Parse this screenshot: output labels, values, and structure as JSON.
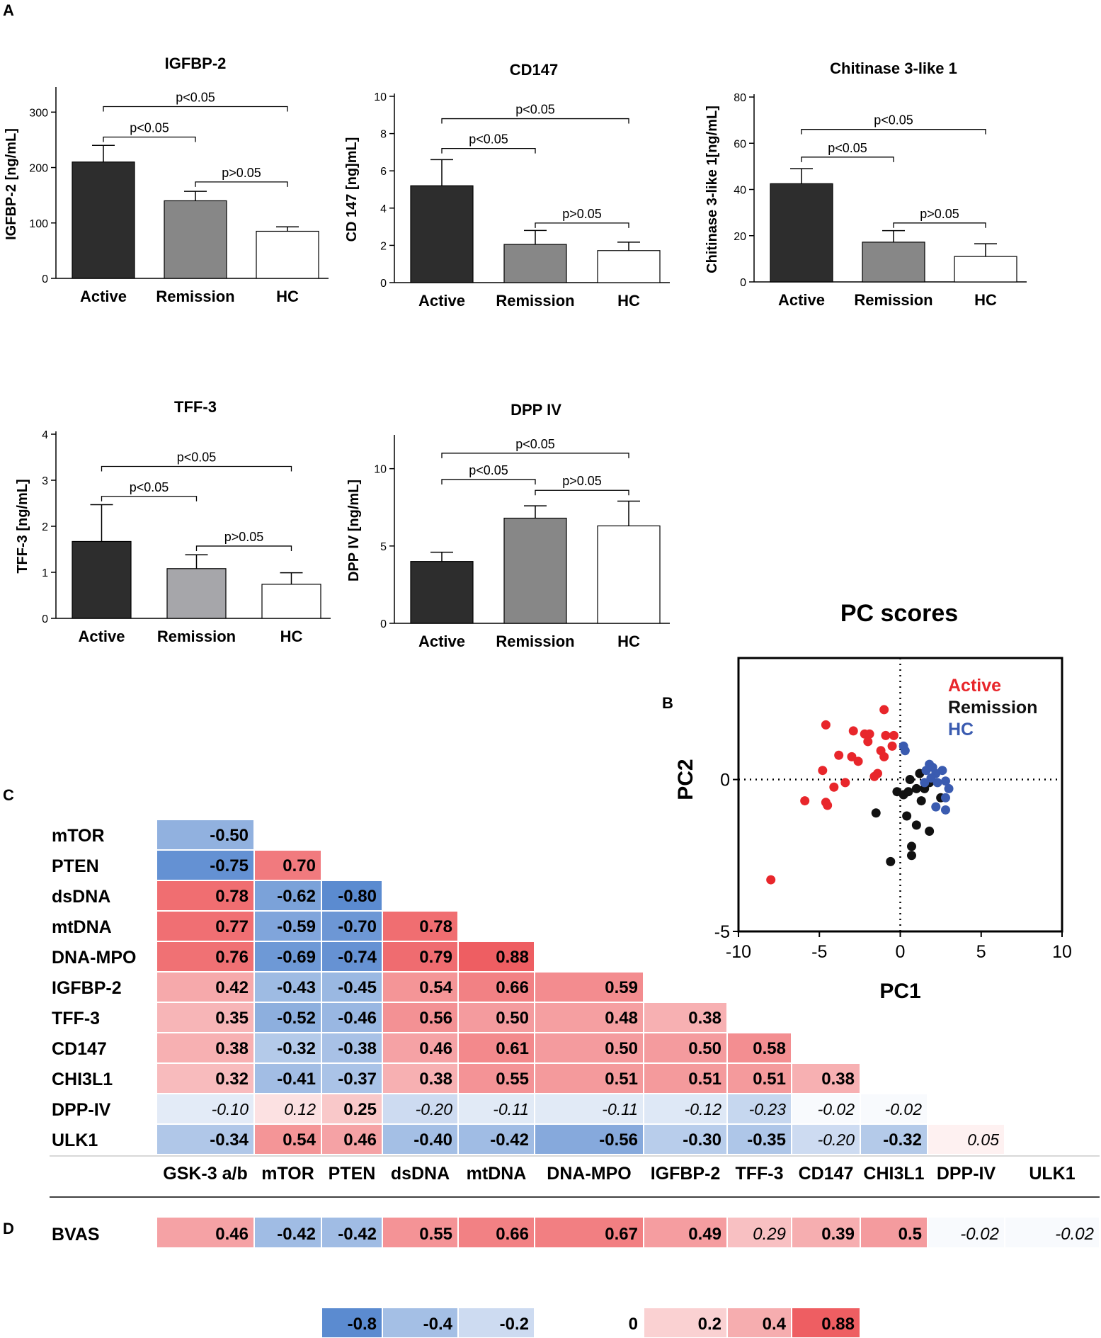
{
  "panel_labels": {
    "a": "A",
    "b": "B",
    "c": "C",
    "d": "D"
  },
  "colors": {
    "active_bar": "#2d2d2d",
    "remission_bar": "#878787",
    "remission_bar_tff3": "#a6a6aa",
    "hc_bar": "#ffffff",
    "active_dot": "#e8262b",
    "remission_dot": "#111111",
    "hc_dot": "#3a5bb0",
    "neg_strong": "#5b8bd0",
    "pos_strong": "#ee5e62"
  },
  "chart_data": [
    {
      "id": "igfbp2",
      "type": "bar",
      "title": "IGFBP-2",
      "categories": [
        "Active",
        "Remission",
        "HC"
      ],
      "values": [
        210,
        140,
        85
      ],
      "errors": [
        30,
        17,
        8
      ],
      "ylabel": "IGFBP-2 [ng/mL]",
      "ylim": [
        0,
        340
      ],
      "yticks": [
        0,
        100,
        200,
        300
      ],
      "brackets": [
        {
          "from": 0,
          "to": 2,
          "level": 310,
          "label": "p<0.05"
        },
        {
          "from": 0,
          "to": 1,
          "level": 255,
          "label": "p<0.05"
        },
        {
          "from": 1,
          "to": 2,
          "level": 174,
          "label": "p>0.05"
        }
      ]
    },
    {
      "id": "cd147",
      "type": "bar",
      "title": "CD147",
      "categories": [
        "Active",
        "Remission",
        "HC"
      ],
      "values": [
        5.2,
        2.05,
        1.72
      ],
      "errors": [
        1.4,
        0.75,
        0.45
      ],
      "ylabel": "CD 147 [ng]mL]",
      "ylim": [
        0,
        10
      ],
      "yticks": [
        0,
        2,
        4,
        6,
        8,
        10
      ],
      "brackets": [
        {
          "from": 0,
          "to": 2,
          "level": 8.8,
          "label": "p<0.05"
        },
        {
          "from": 0,
          "to": 1,
          "level": 7.2,
          "label": "p<0.05"
        },
        {
          "from": 1,
          "to": 2,
          "level": 3.2,
          "label": "p>0.05"
        }
      ]
    },
    {
      "id": "chi3l1",
      "type": "bar",
      "title": "Chitinase 3-like 1",
      "categories": [
        "Active",
        "Remission",
        "HC"
      ],
      "values": [
        42.5,
        17.2,
        11
      ],
      "errors": [
        6.5,
        5,
        5.5
      ],
      "ylabel": "Chitinase 3-like 1[ng/mL]",
      "ylim": [
        0,
        80
      ],
      "yticks": [
        0,
        20,
        40,
        60,
        80
      ],
      "brackets": [
        {
          "from": 0,
          "to": 2,
          "level": 66,
          "label": "p<0.05"
        },
        {
          "from": 0,
          "to": 1,
          "level": 54,
          "label": "p<0.05"
        },
        {
          "from": 1,
          "to": 2,
          "level": 25.5,
          "label": "p>0.05"
        }
      ]
    },
    {
      "id": "tff3",
      "type": "bar",
      "title": "TFF-3",
      "categories": [
        "Active",
        "Remission",
        "HC"
      ],
      "values": [
        1.67,
        1.08,
        0.74
      ],
      "errors": [
        0.8,
        0.3,
        0.25
      ],
      "ylabel": "TFF-3 [ng/mL]",
      "ylim": [
        0,
        4
      ],
      "yticks": [
        0,
        1,
        2,
        3,
        4
      ],
      "brackets": [
        {
          "from": 0,
          "to": 2,
          "level": 3.3,
          "label": "p<0.05"
        },
        {
          "from": 0,
          "to": 1,
          "level": 2.65,
          "label": "p<0.05"
        },
        {
          "from": 1,
          "to": 2,
          "level": 1.57,
          "label": "p>0.05"
        }
      ]
    },
    {
      "id": "dpp4",
      "type": "bar",
      "title": "DPP IV",
      "categories": [
        "Active",
        "Remission",
        "HC"
      ],
      "values": [
        4,
        6.8,
        6.3
      ],
      "errors": [
        0.6,
        0.8,
        1.6
      ],
      "ylabel": "DPP IV [ng/mL]",
      "ylim": [
        0,
        12
      ],
      "yticks": [
        0,
        5,
        10
      ],
      "brackets": [
        {
          "from": 0,
          "to": 2,
          "level": 11,
          "label": "p<0.05"
        },
        {
          "from": 0,
          "to": 1,
          "level": 9.3,
          "label": "p<0.05"
        },
        {
          "from": 1,
          "to": 2,
          "level": 8.6,
          "label": "p>0.05"
        }
      ]
    },
    {
      "id": "pc_scores",
      "type": "scatter",
      "title": "PC scores",
      "xlabel": "PC1",
      "ylabel": "PC2",
      "xlim": [
        -10,
        10
      ],
      "ylim": [
        -5,
        4
      ],
      "xticks": [
        -10,
        -5,
        0,
        5,
        10
      ],
      "yticks": [
        -5,
        0
      ],
      "legend": [
        "Active",
        "Remission",
        "HC"
      ],
      "series": [
        {
          "name": "Active",
          "points": [
            [
              -1,
              2.3
            ],
            [
              -4.6,
              1.8
            ],
            [
              -2.9,
              1.6
            ],
            [
              -2.2,
              1.5
            ],
            [
              -1.9,
              1.5
            ],
            [
              -0.9,
              1.45
            ],
            [
              -0.4,
              1.45
            ],
            [
              -2,
              1.25
            ],
            [
              -0.5,
              1.1
            ],
            [
              -1.2,
              0.95
            ],
            [
              -3,
              0.75
            ],
            [
              -3.8,
              0.8
            ],
            [
              -2.6,
              0.6
            ],
            [
              -1,
              0.75
            ],
            [
              -4.8,
              0.3
            ],
            [
              -1.4,
              0.2
            ],
            [
              -1.6,
              0.1
            ],
            [
              -3.4,
              -0.1
            ],
            [
              -4.1,
              -0.25
            ],
            [
              -5.9,
              -0.7
            ],
            [
              -4.6,
              -0.75
            ],
            [
              -4.5,
              -0.85
            ],
            [
              -8,
              -3.3
            ]
          ]
        },
        {
          "name": "Remission",
          "points": [
            [
              1.2,
              0.2
            ],
            [
              0.6,
              0
            ],
            [
              1.8,
              -0.1
            ],
            [
              1,
              -0.3
            ],
            [
              -0.2,
              -0.4
            ],
            [
              0.2,
              -0.5
            ],
            [
              0.5,
              -0.4
            ],
            [
              1.5,
              -0.3
            ],
            [
              1.3,
              -0.7
            ],
            [
              2.5,
              -0.6
            ],
            [
              -1.5,
              -1.1
            ],
            [
              0.4,
              -1.2
            ],
            [
              1,
              -1.5
            ],
            [
              1.8,
              -1.7
            ],
            [
              0.7,
              -2.2
            ],
            [
              0.7,
              -2.5
            ],
            [
              -0.6,
              -2.7
            ]
          ]
        },
        {
          "name": "HC",
          "points": [
            [
              0.2,
              1.1
            ],
            [
              0.3,
              0.95
            ],
            [
              1.8,
              0.5
            ],
            [
              2,
              0.4
            ],
            [
              1.6,
              0.3
            ],
            [
              2.2,
              0.2
            ],
            [
              2.6,
              0.3
            ],
            [
              1.9,
              0.05
            ],
            [
              2.3,
              -0.1
            ],
            [
              2.8,
              -0.05
            ],
            [
              3,
              -0.3
            ],
            [
              1.5,
              -0.1
            ],
            [
              2.8,
              -0.6
            ],
            [
              2.2,
              -0.9
            ],
            [
              2.8,
              -1
            ]
          ]
        }
      ]
    },
    {
      "id": "correlation",
      "type": "heatmap",
      "rows": [
        "mTOR",
        "PTEN",
        "dsDNA",
        "mtDNA",
        "DNA-MPO",
        "IGFBP-2",
        "TFF-3",
        "CD147",
        "CHI3L1",
        "DPP-IV",
        "ULK1"
      ],
      "columns": [
        "GSK-3 a/b",
        "mTOR",
        "PTEN",
        "dsDNA",
        "mtDNA",
        "DNA-MPO",
        "IGFBP-2",
        "TFF-3",
        "CD147",
        "CHI3L1",
        "DPP-IV",
        "ULK1"
      ],
      "values": [
        [
          -0.5
        ],
        [
          -0.75,
          0.7
        ],
        [
          0.78,
          -0.62,
          -0.8
        ],
        [
          0.77,
          -0.59,
          -0.7,
          0.78
        ],
        [
          0.76,
          -0.69,
          -0.74,
          0.79,
          0.88
        ],
        [
          0.42,
          -0.43,
          -0.45,
          0.54,
          0.66,
          0.59
        ],
        [
          0.35,
          -0.52,
          -0.46,
          0.56,
          0.5,
          0.48,
          0.38
        ],
        [
          0.38,
          -0.32,
          -0.38,
          0.46,
          0.61,
          0.5,
          0.5,
          0.58
        ],
        [
          0.32,
          -0.41,
          -0.37,
          0.38,
          0.55,
          0.51,
          0.51,
          0.51,
          0.38
        ],
        [
          -0.1,
          0.12,
          0.25,
          -0.2,
          -0.11,
          -0.11,
          -0.12,
          -0.23,
          -0.02,
          -0.02
        ],
        [
          -0.34,
          0.54,
          0.46,
          -0.4,
          -0.42,
          -0.56,
          -0.3,
          -0.35,
          -0.2,
          -0.32,
          0.05
        ]
      ],
      "labels": [
        [
          "-0.50"
        ],
        [
          "-0.75",
          "0.70"
        ],
        [
          "0.78",
          "-0.62",
          "-0.80"
        ],
        [
          "0.77",
          "-0.59",
          "-0.70",
          "0.78"
        ],
        [
          "0.76",
          "-0.69",
          "-0.74",
          "0.79",
          "0.88"
        ],
        [
          "0.42",
          "-0.43",
          "-0.45",
          "0.54",
          "0.66",
          "0.59"
        ],
        [
          "0.35",
          "-0.52",
          "-0.46",
          "0.56",
          "0.50",
          "0.48",
          "0.38"
        ],
        [
          "0.38",
          "-0.32",
          "-0.38",
          "0.46",
          "0.61",
          "0.50",
          "0.50",
          "0.58"
        ],
        [
          "0.32",
          "-0.41",
          "-0.37",
          "0.38",
          "0.55",
          "0.51",
          "0.51",
          "0.51",
          "0.38"
        ],
        [
          "-0.10",
          "0.12",
          "0.25",
          "-0.20",
          "-0.11",
          "-0.11",
          "-0.12",
          "-0.23",
          "-0.02",
          "-0.02"
        ],
        [
          "-0.34",
          "0.54",
          "0.46",
          "-0.40",
          "-0.42",
          "-0.56",
          "-0.30",
          "-0.35",
          "-0.20",
          "-0.32",
          "0.05"
        ]
      ],
      "significant": [
        [
          true
        ],
        [
          true,
          true
        ],
        [
          true,
          true,
          true
        ],
        [
          true,
          true,
          true,
          true
        ],
        [
          true,
          true,
          true,
          true,
          true
        ],
        [
          true,
          true,
          true,
          true,
          true,
          true
        ],
        [
          true,
          true,
          true,
          true,
          true,
          true,
          true
        ],
        [
          true,
          true,
          true,
          true,
          true,
          true,
          true,
          true
        ],
        [
          true,
          true,
          true,
          true,
          true,
          true,
          true,
          true,
          true
        ],
        [
          false,
          false,
          true,
          false,
          false,
          false,
          false,
          false,
          false,
          false
        ],
        [
          true,
          true,
          true,
          true,
          true,
          true,
          true,
          true,
          false,
          true,
          false
        ]
      ]
    },
    {
      "id": "bvas",
      "type": "heatmap",
      "row": "BVAS",
      "values": [
        0.46,
        -0.42,
        -0.42,
        0.55,
        0.66,
        0.67,
        0.49,
        0.29,
        0.39,
        0.5,
        -0.02,
        -0.02
      ],
      "labels": [
        "0.46",
        "-0.42",
        "-0.42",
        "0.55",
        "0.66",
        "0.67",
        "0.49",
        "0.29",
        "0.39",
        "0.5",
        "-0.02",
        "-0.02"
      ],
      "significant": [
        true,
        true,
        true,
        true,
        true,
        true,
        true,
        false,
        true,
        true,
        false,
        false
      ]
    },
    {
      "id": "colorscale",
      "type": "legend",
      "values": [
        -0.8,
        -0.4,
        -0.2,
        0,
        0.2,
        0.4,
        0.88
      ],
      "labels": [
        "-0.8",
        "-0.4",
        "-0.2",
        "0",
        "0.2",
        "0.4",
        "0.88"
      ]
    }
  ]
}
